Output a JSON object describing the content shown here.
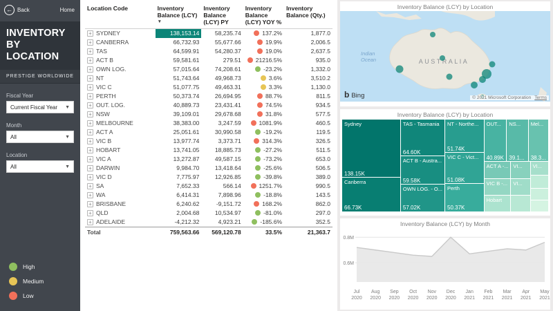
{
  "sidebar": {
    "back_label": "Back",
    "home_label": "Home",
    "title": "INVENTORY BY LOCATION",
    "subtitle": "PRESTIGE WORLDWIDE",
    "filters": [
      {
        "label": "Fiscal Year",
        "value": "Current Fiscal Year"
      },
      {
        "label": "Month",
        "value": "All"
      },
      {
        "label": "Location",
        "value": "All"
      }
    ],
    "legend": [
      {
        "label": "High",
        "key": "high"
      },
      {
        "label": "Medium",
        "key": "medium"
      },
      {
        "label": "Low",
        "key": "low"
      }
    ]
  },
  "colors": {
    "indicator": {
      "high": "#8fbf5f",
      "medium": "#e7c556",
      "low": "#f1705a"
    },
    "accent_teal": "#0c8578"
  },
  "table": {
    "columns": [
      "Location Code",
      "Inventory Balance (LCY)",
      "Inventory Balance (LCY) PY",
      "Inventory Balance (LCY) YOY %",
      "Inventory Balance (Qty.)"
    ],
    "sort_indicator": "▼",
    "rows": [
      {
        "code": "SYDNEY",
        "lcy": "138,153.14",
        "py": "58,235.74",
        "yoy": "137.2%",
        "qty": "1,877.0",
        "indicator": "low",
        "bar": true
      },
      {
        "code": "CANBERRA",
        "lcy": "66,732.93",
        "py": "55,677.66",
        "yoy": "19.9%",
        "qty": "2,006.5",
        "indicator": "low"
      },
      {
        "code": "TAS",
        "lcy": "64,599.91",
        "py": "54,280.37",
        "yoy": "19.0%",
        "qty": "2,637.5",
        "indicator": "low"
      },
      {
        "code": "ACT B",
        "lcy": "59,581.61",
        "py": "279.51",
        "yoy": "21216.5%",
        "qty": "935.0",
        "indicator": "low"
      },
      {
        "code": "OWN LOG.",
        "lcy": "57,015.64",
        "py": "74,208.61",
        "yoy": "-23.2%",
        "qty": "1,332.0",
        "indicator": "high"
      },
      {
        "code": "NT",
        "lcy": "51,743.64",
        "py": "49,968.73",
        "yoy": "3.6%",
        "qty": "3,510.2",
        "indicator": "medium"
      },
      {
        "code": "VIC C",
        "lcy": "51,077.75",
        "py": "49,463.31",
        "yoy": "3.3%",
        "qty": "1,130.0",
        "indicator": "medium"
      },
      {
        "code": "PERTH",
        "lcy": "50,373.74",
        "py": "26,694.95",
        "yoy": "88.7%",
        "qty": "811.5",
        "indicator": "low"
      },
      {
        "code": "OUT. LOG.",
        "lcy": "40,889.73",
        "py": "23,431.41",
        "yoy": "74.5%",
        "qty": "934.5",
        "indicator": "low"
      },
      {
        "code": "NSW",
        "lcy": "39,109.01",
        "py": "29,678.68",
        "yoy": "31.8%",
        "qty": "577.5",
        "indicator": "low"
      },
      {
        "code": "MELBOURNE",
        "lcy": "38,383.00",
        "py": "3,247.59",
        "yoy": "1081.9%",
        "qty": "460.5",
        "indicator": "low"
      },
      {
        "code": "ACT A",
        "lcy": "25,051.61",
        "py": "30,990.58",
        "yoy": "-19.2%",
        "qty": "119.5",
        "indicator": "high"
      },
      {
        "code": "VIC B",
        "lcy": "13,977.74",
        "py": "3,373.71",
        "yoy": "314.3%",
        "qty": "326.5",
        "indicator": "low"
      },
      {
        "code": "HOBART",
        "lcy": "13,741.05",
        "py": "18,885.73",
        "yoy": "-27.2%",
        "qty": "511.5",
        "indicator": "high"
      },
      {
        "code": "VIC A",
        "lcy": "13,272.87",
        "py": "49,587.15",
        "yoy": "-73.2%",
        "qty": "653.0",
        "indicator": "high"
      },
      {
        "code": "DARWIN",
        "lcy": "9,984.70",
        "py": "13,418.64",
        "yoy": "-25.6%",
        "qty": "506.5",
        "indicator": "high"
      },
      {
        "code": "VIC D",
        "lcy": "7,775.97",
        "py": "12,926.85",
        "yoy": "-39.8%",
        "qty": "389.0",
        "indicator": "high"
      },
      {
        "code": "SA",
        "lcy": "7,652.33",
        "py": "566.14",
        "yoy": "1251.7%",
        "qty": "990.5",
        "indicator": "low"
      },
      {
        "code": "WA",
        "lcy": "6,414.31",
        "py": "7,898.96",
        "yoy": "-18.8%",
        "qty": "143.5",
        "indicator": "high"
      },
      {
        "code": "BRISBANE",
        "lcy": "6,240.62",
        "py": "-9,151.72",
        "yoy": "168.2%",
        "qty": "862.0",
        "indicator": "low"
      },
      {
        "code": "QLD",
        "lcy": "2,004.68",
        "py": "10,534.97",
        "yoy": "-81.0%",
        "qty": "297.0",
        "indicator": "high"
      },
      {
        "code": "ADELAIDE",
        "lcy": "-4,212.32",
        "py": "4,923.21",
        "yoy": "-185.6%",
        "qty": "352.5",
        "indicator": "high"
      }
    ],
    "total": {
      "label": "Total",
      "lcy": "759,563.66",
      "py": "569,120.78",
      "yoy": "33.5%",
      "qty": "21,363.7"
    }
  },
  "map": {
    "title": "Inventory Balance (LCY) by Location",
    "labels": {
      "australia": "AUSTRALIA",
      "ocean1": "Indian",
      "ocean2": "Ocean"
    },
    "bing": "Bing",
    "attribution": "© 2021 Microsoft Corporation",
    "terms": "Terms"
  },
  "chart_data": [
    {
      "type": "line",
      "title": "Inventory Balance (LCY) by Month",
      "x": [
        "Jul 2020",
        "Aug 2020",
        "Sep 2020",
        "Oct 2020",
        "Nov 2020",
        "Dec 2020",
        "Jan 2021",
        "Feb 2021",
        "Mar 2021",
        "Apr 2021",
        "May 2021"
      ],
      "series": [
        {
          "name": "Inventory Balance (LCY)",
          "values_M": [
            0.72,
            0.7,
            0.68,
            0.66,
            0.65,
            0.8,
            0.67,
            0.69,
            0.71,
            0.7,
            0.76
          ]
        }
      ],
      "ylim_M": [
        0.45,
        0.85
      ],
      "y_ticks": [
        {
          "label": "0.6M",
          "value": 0.6
        },
        {
          "label": "0.8M",
          "value": 0.8
        }
      ],
      "grid": true,
      "legend_position": "none"
    },
    {
      "type": "treemap",
      "title": "Inventory Balance (LCY) by Location",
      "cells": [
        {
          "name": "Sydney",
          "value": "138.15K",
          "color": "#02756b"
        },
        {
          "name": "Canberra",
          "value": "66.73K",
          "color": "#087e72"
        },
        {
          "name": "TAS - Tasmania",
          "value": "64.60K",
          "color": "#10867a"
        },
        {
          "name": "ACT B - Austra...",
          "value": "59.58K",
          "color": "#188e81"
        },
        {
          "name": "OWN LOG. - O...",
          "value": "57.02K",
          "color": "#209588"
        },
        {
          "name": "NT - Northe...",
          "value": "51.74K",
          "color": "#289d8f"
        },
        {
          "name": "VIC C - Vict...",
          "value": "51.08K",
          "color": "#30a495"
        },
        {
          "name": "Perth",
          "value": "50.37K",
          "color": "#38ac9c"
        },
        {
          "name": "OUT...",
          "value": "40.89K",
          "color": "#48b3a2"
        },
        {
          "name": "NS...",
          "value": "39.1...",
          "color": "#58baa8"
        },
        {
          "name": "Mel...",
          "value": "38.3...",
          "color": "#68c2af"
        },
        {
          "name": "ACT A -...",
          "value": "",
          "color": "#78c9b6"
        },
        {
          "name": "VI...",
          "value": "",
          "color": "#88d1bd"
        },
        {
          "name": "VIC B -...",
          "value": "",
          "color": "#94d7c3"
        },
        {
          "name": "VI...",
          "value": "",
          "color": "#a0ddc9"
        },
        {
          "name": "Hobart",
          "value": "",
          "color": "#acE3cf"
        },
        {
          "name": "",
          "value": "",
          "color": "#b8e8d4"
        },
        {
          "name": "VI...",
          "value": "",
          "color": "#a6dfcb"
        },
        {
          "name": "",
          "value": "",
          "color": "#c0ecd8"
        },
        {
          "name": "",
          "value": "",
          "color": "#cbf0dd"
        },
        {
          "name": "",
          "value": "",
          "color": "#d5f4e2"
        }
      ]
    }
  ]
}
